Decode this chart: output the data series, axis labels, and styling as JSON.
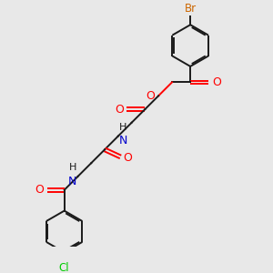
{
  "background_color": "#e8e8e8",
  "bond_color": "#1a1a1a",
  "oxygen_color": "#ff0000",
  "nitrogen_color": "#0000cc",
  "bromine_color": "#cc6600",
  "chlorine_color": "#00cc00",
  "line_width": 1.4,
  "figsize": [
    3.0,
    3.0
  ],
  "dpi": 100,
  "xlim": [
    0,
    10
  ],
  "ylim": [
    0,
    10
  ]
}
